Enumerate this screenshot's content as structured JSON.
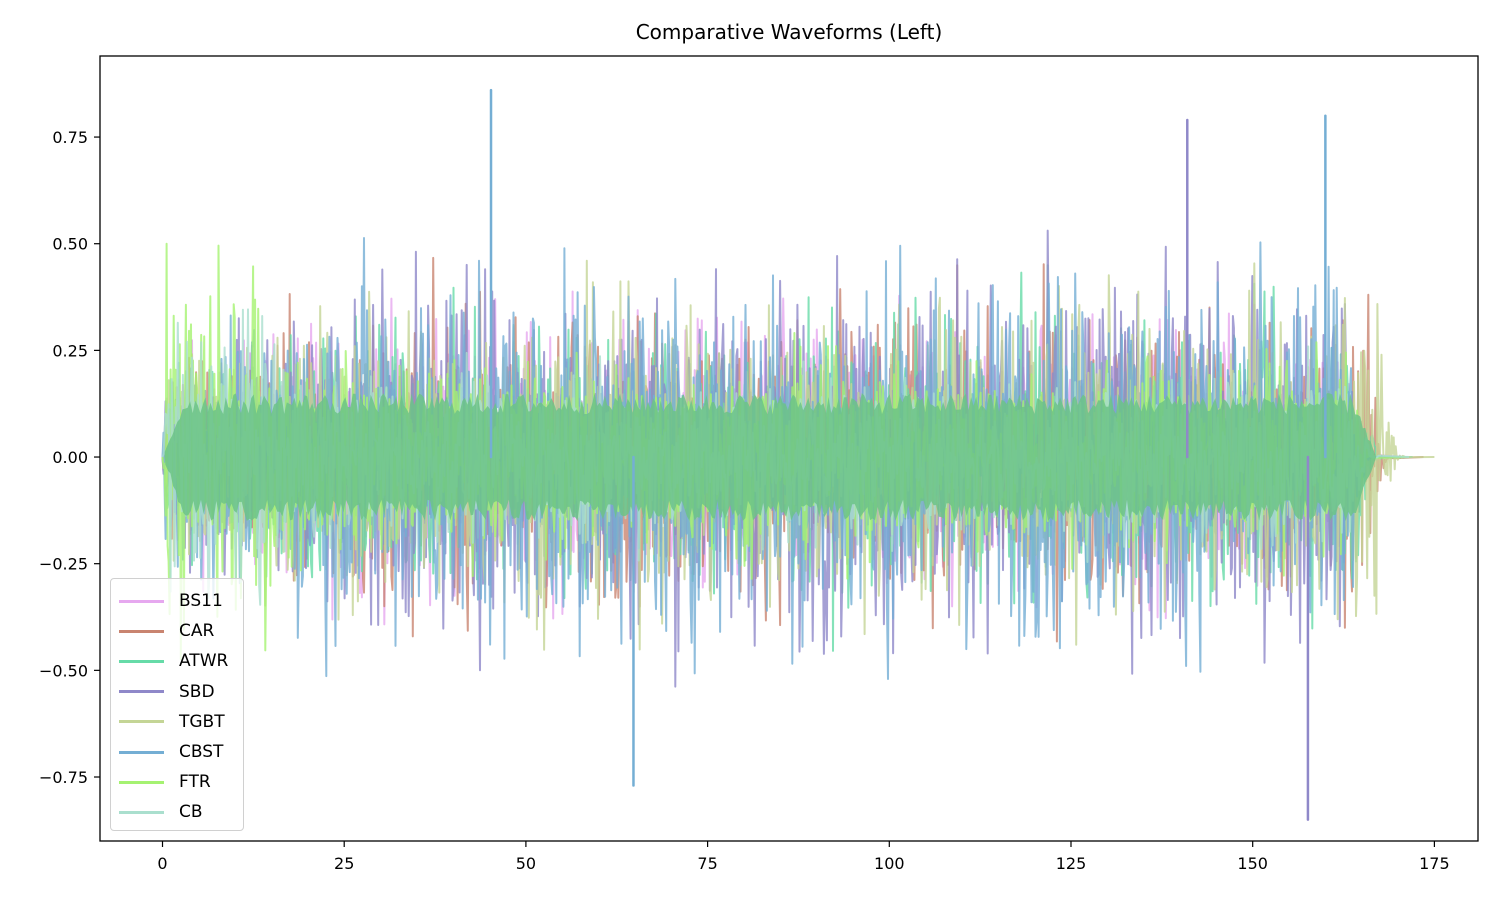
{
  "chart_data": {
    "type": "line",
    "title": "Comparative Waveforms (Left)",
    "xlabel": "",
    "ylabel": "",
    "xlim": [
      -8.6,
      181
    ],
    "ylim": [
      -0.9,
      0.94
    ],
    "x_ticks": [
      0,
      25,
      50,
      75,
      100,
      125,
      150,
      175
    ],
    "x_tick_labels": [
      "0",
      "25",
      "50",
      "75",
      "100",
      "125",
      "150",
      "175"
    ],
    "y_ticks": [
      0.75,
      0.5,
      0.25,
      0.0,
      -0.25,
      -0.5,
      -0.75
    ],
    "y_tick_labels": [
      "0.75",
      "0.50",
      "0.25",
      "0.00",
      "−0.25",
      "−0.50",
      "−0.75"
    ],
    "grid": false,
    "legend_position": "lower left",
    "series": [
      {
        "name": "BS11",
        "color": "#e6a8ef",
        "end_x": 167,
        "rms": 0.17,
        "peak": 0.55,
        "intro_peak": 0.3
      },
      {
        "name": "CAR",
        "color": "#c98470",
        "end_x": 169.5,
        "rms": 0.18,
        "peak": 0.67,
        "intro_peak": 0.3
      },
      {
        "name": "ATWR",
        "color": "#66dba8",
        "end_x": 168,
        "rms": 0.17,
        "peak": 0.64,
        "intro_peak": 0.3
      },
      {
        "name": "SBD",
        "color": "#8f88c9",
        "end_x": 166,
        "rms": 0.22,
        "peak": 0.85,
        "intro_peak": 0.35
      },
      {
        "name": "TGBT",
        "color": "#c4d596",
        "end_x": 171,
        "rms": 0.19,
        "peak": 0.66,
        "intro_peak": 0.3
      },
      {
        "name": "CBST",
        "color": "#74aed4",
        "end_x": 166.5,
        "rms": 0.23,
        "peak": 0.86,
        "intro_peak": 0.35
      },
      {
        "name": "FTR",
        "color": "#a5f271",
        "end_x": 167,
        "rms": 0.12,
        "peak": 0.5,
        "intro_peak": 0.53
      },
      {
        "name": "CB",
        "color": "#aadfce",
        "end_x": 167.5,
        "rms": 0.1,
        "peak": 0.35,
        "intro_peak": 0.45
      }
    ],
    "notable_peaks": [
      {
        "x": 45.2,
        "y": 0.86,
        "series": "CBST"
      },
      {
        "x": 157.6,
        "y": -0.85,
        "series": "SBD"
      },
      {
        "x": 160,
        "y": 0.8,
        "series": "CBST"
      },
      {
        "x": 141,
        "y": 0.79,
        "series": "SBD"
      },
      {
        "x": 64.8,
        "y": -0.77,
        "series": "CBST"
      }
    ],
    "overlay_fill_color": "#6cc387"
  }
}
